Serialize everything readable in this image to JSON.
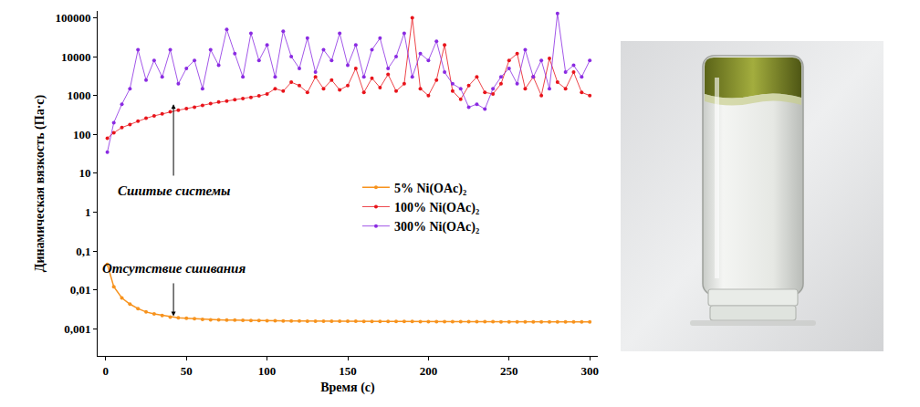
{
  "chart_data": {
    "type": "scatter",
    "x_label": "Время (с)",
    "y_label": "Динамическая вязкость (Па·с)",
    "log": "y",
    "grid": false,
    "legend": "right",
    "marker": "circle",
    "line_style": "solid",
    "xlim": [
      -5,
      305
    ],
    "xticks": [
      0,
      50,
      100,
      150,
      200,
      250,
      300
    ],
    "ylim": [
      0.0002,
      150000
    ],
    "yticks": [
      {
        "value": 0.001,
        "label": "0,001"
      },
      {
        "value": 0.01,
        "label": "0,01"
      },
      {
        "value": 0.1,
        "label": "0,1"
      },
      1,
      10,
      100,
      1000,
      10000,
      100000
    ],
    "annotations": [
      {
        "text": "Сшитые системы",
        "x": 42,
        "y": 3.5,
        "arrow_from": [
          42,
          8
        ],
        "arrow_to": [
          42,
          600
        ]
      },
      {
        "text": "Отсутствие сшивания",
        "x": 42,
        "y": 0.035,
        "arrow_from": [
          42,
          0.016
        ],
        "arrow_to": [
          42,
          0.0021
        ]
      }
    ],
    "x": [
      1,
      5,
      10,
      15,
      20,
      25,
      30,
      35,
      40,
      45,
      50,
      55,
      60,
      65,
      70,
      75,
      80,
      85,
      90,
      95,
      100,
      105,
      110,
      115,
      120,
      125,
      130,
      135,
      140,
      145,
      150,
      155,
      160,
      165,
      170,
      175,
      180,
      185,
      190,
      195,
      200,
      205,
      210,
      215,
      220,
      225,
      230,
      235,
      240,
      245,
      250,
      255,
      260,
      265,
      270,
      275,
      280,
      285,
      290,
      295,
      300
    ],
    "series": [
      {
        "name": "5% Ni(OAc)₂",
        "color": "#f7931e",
        "values": [
          0.045,
          0.012,
          0.0062,
          0.0043,
          0.0033,
          0.0027,
          0.0024,
          0.0022,
          0.002,
          0.0019,
          0.00185,
          0.0018,
          0.00175,
          0.0017,
          0.0017,
          0.00168,
          0.00166,
          0.00165,
          0.00163,
          0.00162,
          0.0016,
          0.0016,
          0.00159,
          0.00158,
          0.00158,
          0.00157,
          0.00157,
          0.00156,
          0.00156,
          0.00155,
          0.00155,
          0.00155,
          0.00154,
          0.00154,
          0.00154,
          0.00153,
          0.00153,
          0.00153,
          0.00153,
          0.00152,
          0.00152,
          0.00152,
          0.00152,
          0.00152,
          0.00151,
          0.00151,
          0.00151,
          0.00151,
          0.00151,
          0.0015,
          0.0015,
          0.0015,
          0.0015,
          0.0015,
          0.0015,
          0.0015,
          0.0015,
          0.0015,
          0.0015,
          0.0015,
          0.0015
        ]
      },
      {
        "name": "100% Ni(OAc)₂",
        "color": "#e8141b",
        "values": [
          80,
          110,
          150,
          180,
          220,
          260,
          300,
          340,
          380,
          420,
          460,
          500,
          560,
          620,
          680,
          720,
          780,
          840,
          900,
          980,
          1100,
          1500,
          1300,
          2200,
          1800,
          1200,
          3000,
          1500,
          2500,
          1400,
          1800,
          5000,
          1200,
          2800,
          1600,
          3500,
          1300,
          2000,
          100000,
          1500,
          1000,
          2500,
          20000,
          1300,
          800,
          1800,
          3000,
          1200,
          1100,
          2000,
          8000,
          12000,
          1500,
          3000,
          1000,
          9000,
          2200,
          1500,
          4000,
          1200,
          1000
        ]
      },
      {
        "name": "300% Ni(OAc)₂",
        "color": "#8a2be2",
        "values": [
          35,
          200,
          600,
          1500,
          15000,
          2500,
          8000,
          3000,
          15000,
          2000,
          5000,
          8000,
          1500,
          15000,
          6000,
          50000,
          12000,
          3000,
          40000,
          8000,
          20000,
          3000,
          45000,
          10000,
          5000,
          30000,
          4000,
          15000,
          8000,
          40000,
          6000,
          20000,
          3000,
          15000,
          30000,
          5000,
          10000,
          40000,
          3000,
          12000,
          8000,
          25000,
          4000,
          2000,
          1500,
          500,
          600,
          450,
          1500,
          3000,
          5000,
          2000,
          15000,
          3000,
          8000,
          1500,
          130000,
          4000,
          6000,
          3000,
          8000
        ]
      }
    ]
  }
}
